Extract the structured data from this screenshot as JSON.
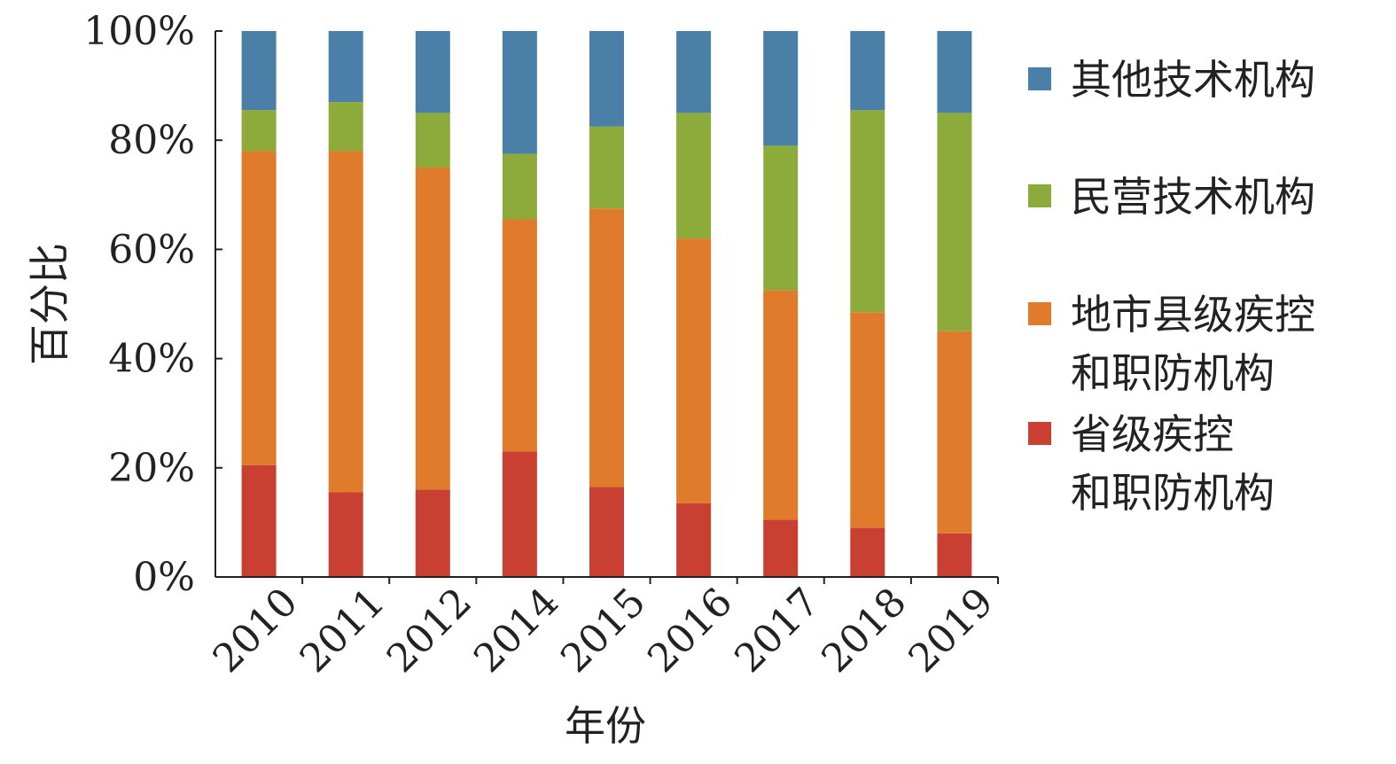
{
  "chart_data": {
    "type": "bar",
    "stacked": true,
    "percent": true,
    "xlabel": "年份",
    "ylabel": "百分比",
    "ylim": [
      0,
      100
    ],
    "yticks": [
      "0%",
      "20%",
      "40%",
      "60%",
      "80%",
      "100%"
    ],
    "categories": [
      "2010",
      "2011",
      "2012",
      "2014",
      "2015",
      "2016",
      "2017",
      "2018",
      "2019"
    ],
    "grid": false,
    "legend_position": "right",
    "series": [
      {
        "name": [
          "省级疾控",
          "和职防机构"
        ],
        "color": "#c94033",
        "values": [
          20.5,
          15.5,
          16,
          23,
          16.5,
          13.5,
          10.5,
          9,
          8
        ]
      },
      {
        "name": [
          "地市县级疾控",
          "和职防机构"
        ],
        "color": "#e07b2c",
        "values": [
          57.5,
          62.5,
          59,
          42.5,
          51,
          48.5,
          42,
          39.5,
          37
        ]
      },
      {
        "name": [
          "民营技术机构"
        ],
        "color": "#8dab3b",
        "values": [
          7.5,
          9,
          10,
          12,
          15,
          23,
          26.5,
          37,
          40
        ]
      },
      {
        "name": [
          "其他技术机构"
        ],
        "color": "#4a7fa8",
        "values": [
          14.5,
          13,
          15,
          22.5,
          17.5,
          15,
          21,
          14.5,
          15
        ]
      }
    ]
  }
}
